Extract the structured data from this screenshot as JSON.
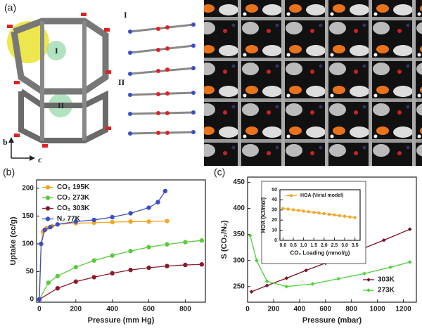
{
  "figure": {
    "panel_labels": [
      "(a)",
      "(b)",
      "(c)"
    ],
    "structure_labels": [
      "I",
      "II"
    ],
    "axis_labels": [
      "b",
      "c"
    ]
  },
  "chart_data": [
    {
      "type": "line",
      "xlabel": "Pressure (mm Hg)",
      "ylabel": "Uptake (cc/g)",
      "xlim": [
        -15,
        910
      ],
      "xticks": [
        0,
        200,
        400,
        600,
        800
      ],
      "ylim": [
        -5,
        215
      ],
      "yticks": [
        0,
        50,
        100,
        150,
        200
      ],
      "legend": "upper left",
      "marker": "circle",
      "series": [
        {
          "name": "CO₂ 195K",
          "color": "#f5a623",
          "x": [
            0,
            10,
            20,
            40,
            70,
            100,
            200,
            300,
            400,
            500,
            600,
            700
          ],
          "values": [
            0,
            100,
            122,
            128,
            132,
            135,
            137,
            138,
            139,
            140,
            140,
            141
          ]
        },
        {
          "name": "CO₂ 273K",
          "color": "#5cc93d",
          "x": [
            0,
            50,
            100,
            200,
            300,
            400,
            500,
            600,
            700,
            800,
            890
          ],
          "values": [
            0,
            30,
            42,
            58,
            70,
            79,
            87,
            94,
            99,
            103,
            106
          ]
        },
        {
          "name": "CO₂ 303K",
          "color": "#8b1a2b",
          "x": [
            0,
            100,
            200,
            300,
            400,
            500,
            600,
            700,
            800,
            890
          ],
          "values": [
            0,
            20,
            32,
            40,
            47,
            53,
            57,
            60,
            62,
            63
          ]
        },
        {
          "name": "N₂ 77K",
          "color": "#3b4fc4",
          "x": [
            0,
            10,
            30,
            60,
            100,
            200,
            300,
            400,
            500,
            600,
            650,
            690
          ],
          "values": [
            0,
            100,
            125,
            130,
            135,
            140,
            143,
            148,
            155,
            165,
            175,
            195
          ]
        }
      ]
    },
    {
      "type": "line",
      "xlabel": "Pressure (mbar)",
      "ylabel": "S (CO₂/N₂)",
      "xlim": [
        0,
        1300
      ],
      "xticks": [
        0,
        200,
        400,
        600,
        800,
        1000,
        1200
      ],
      "ylim": [
        220,
        460
      ],
      "yticks": [
        250,
        300,
        350,
        400,
        450
      ],
      "legend": "lower right",
      "marker": "diamond",
      "series": [
        {
          "name": "303K",
          "color": "#7a1020",
          "x": [
            30,
            150,
            300,
            450,
            600,
            750,
            900,
            1050,
            1250
          ],
          "values": [
            240,
            252,
            266,
            281,
            295,
            310,
            324,
            339,
            360
          ]
        },
        {
          "name": "273K",
          "color": "#4cd137",
          "x": [
            20,
            70,
            150,
            300,
            500,
            700,
            900,
            1100,
            1250
          ],
          "values": [
            348,
            300,
            260,
            250,
            255,
            265,
            275,
            287,
            297
          ]
        }
      ]
    },
    {
      "type": "line",
      "xlabel": "CO₂ Loading (mmol/g)",
      "ylabel": "HOA (kJ/mol)",
      "xlim": [
        -0.15,
        3.75
      ],
      "xticks": [
        {
          "value": 0,
          "label": "0.0"
        },
        0.5,
        {
          "value": 1,
          "label": "1.0"
        },
        1.5,
        {
          "value": 2,
          "label": "2.0"
        },
        2.5,
        {
          "value": 3,
          "label": "3.0"
        },
        3.5
      ],
      "ylim": [
        0,
        50
      ],
      "yticks": [
        0,
        10,
        20,
        30,
        40,
        50
      ],
      "legend": "upper left",
      "marker": "circle",
      "series": [
        {
          "name": "HOA (Virial model)",
          "color": "#f5a623",
          "x": [
            0,
            0.25,
            0.5,
            0.75,
            1,
            1.25,
            1.5,
            1.75,
            2,
            2.25,
            2.5,
            2.75,
            3,
            3.25,
            3.5
          ],
          "values": [
            31.5,
            30.9,
            30.2,
            29.6,
            28.9,
            28.3,
            27.6,
            27,
            26.4,
            25.7,
            25.1,
            24.4,
            23.8,
            23.1,
            22.5
          ]
        }
      ]
    }
  ]
}
